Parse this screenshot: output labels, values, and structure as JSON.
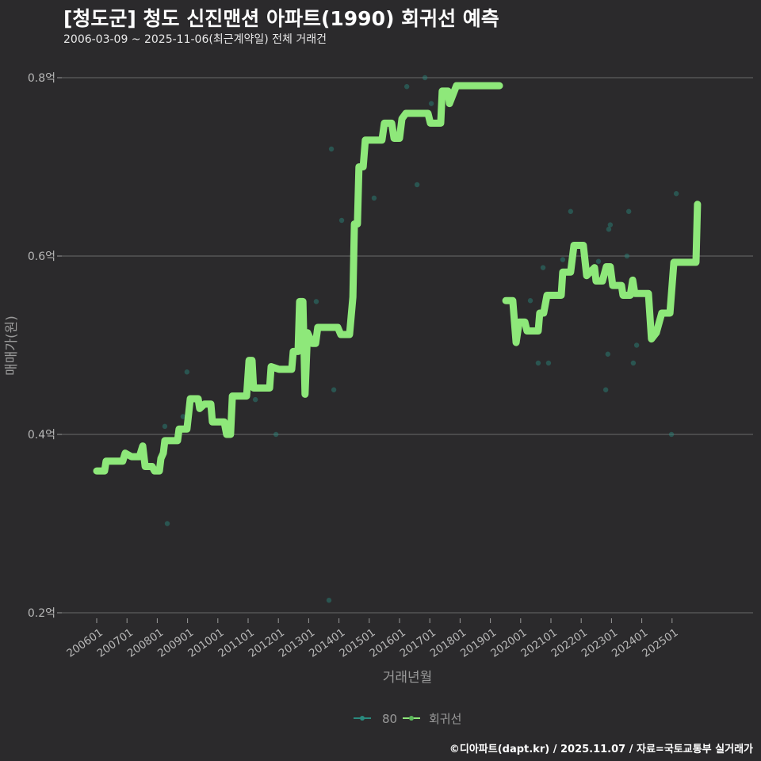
{
  "chart_data": {
    "type": "line",
    "title": "[청도군] 청도 신진맨션 아파트(1990) 회귀선 예측",
    "subtitle": "2006-03-09 ~ 2025-11-06(최근계약일) 전체 거래건",
    "xlabel": "거래년월",
    "ylabel": "매매가(원)",
    "ylim": [
      0.2,
      0.8
    ],
    "y_ticks": [
      {
        "value": 0.8,
        "label": "0.8억"
      },
      {
        "value": 0.6,
        "label": "0.6억"
      },
      {
        "value": 0.4,
        "label": "0.4억"
      },
      {
        "value": 0.2,
        "label": "0.2억"
      }
    ],
    "x_ticks": [
      "200601",
      "200701",
      "200801",
      "200901",
      "201001",
      "201101",
      "201201",
      "201301",
      "201401",
      "201501",
      "201601",
      "201701",
      "201801",
      "201901",
      "202001",
      "202101",
      "202201",
      "202301",
      "202401",
      "202501"
    ],
    "grid": true,
    "legend_position": "bottom",
    "legend": [
      {
        "name": "80",
        "color": "#2a8a7e"
      },
      {
        "name": "회귀선",
        "color": "#8ee87a"
      }
    ],
    "series": [
      {
        "name": "80",
        "kind": "scatter",
        "color": "#2a8a7e",
        "points": [
          [
            2008.25,
            0.409
          ],
          [
            2008.33,
            0.3
          ],
          [
            2008.85,
            0.42
          ],
          [
            2008.98,
            0.47
          ],
          [
            2011.24,
            0.439
          ],
          [
            2011.92,
            0.4
          ],
          [
            2013.25,
            0.549
          ],
          [
            2013.67,
            0.214
          ],
          [
            2013.75,
            0.72
          ],
          [
            2013.83,
            0.45
          ],
          [
            2014.09,
            0.64
          ],
          [
            2015.16,
            0.665
          ],
          [
            2016.24,
            0.79
          ],
          [
            2016.58,
            0.68
          ],
          [
            2016.84,
            0.8
          ],
          [
            2017.05,
            0.771
          ],
          [
            2020.32,
            0.55
          ],
          [
            2020.58,
            0.48
          ],
          [
            2020.74,
            0.587
          ],
          [
            2020.92,
            0.48
          ],
          [
            2021.39,
            0.596
          ],
          [
            2021.65,
            0.65
          ],
          [
            2022.57,
            0.594
          ],
          [
            2022.81,
            0.45
          ],
          [
            2022.88,
            0.49
          ],
          [
            2022.91,
            0.63
          ],
          [
            2022.96,
            0.635
          ],
          [
            2023.51,
            0.6
          ],
          [
            2023.57,
            0.65
          ],
          [
            2023.72,
            0.48
          ],
          [
            2023.83,
            0.5
          ],
          [
            2024.98,
            0.4
          ],
          [
            2025.14,
            0.67
          ]
        ]
      },
      {
        "name": "회귀선",
        "kind": "line",
        "color": "#8ee87a",
        "segments": [
          [
            [
              2006.0,
              0.359
            ],
            [
              2006.26,
              0.359
            ],
            [
              2006.31,
              0.37
            ],
            [
              2006.86,
              0.37
            ],
            [
              2006.94,
              0.379
            ],
            [
              2007.15,
              0.375
            ],
            [
              2007.41,
              0.375
            ],
            [
              2007.52,
              0.387
            ],
            [
              2007.6,
              0.364
            ],
            [
              2007.83,
              0.364
            ],
            [
              2007.91,
              0.359
            ],
            [
              2008.07,
              0.359
            ],
            [
              2008.12,
              0.373
            ],
            [
              2008.2,
              0.379
            ],
            [
              2008.25,
              0.393
            ],
            [
              2008.67,
              0.393
            ],
            [
              2008.72,
              0.406
            ],
            [
              2008.98,
              0.406
            ],
            [
              2009.09,
              0.44
            ],
            [
              2009.35,
              0.44
            ],
            [
              2009.4,
              0.429
            ],
            [
              2009.56,
              0.434
            ],
            [
              2009.77,
              0.434
            ],
            [
              2009.82,
              0.414
            ],
            [
              2010.21,
              0.414
            ],
            [
              2010.29,
              0.4
            ],
            [
              2010.42,
              0.4
            ],
            [
              2010.48,
              0.443
            ],
            [
              2010.95,
              0.443
            ],
            [
              2011.03,
              0.483
            ],
            [
              2011.13,
              0.483
            ],
            [
              2011.18,
              0.452
            ],
            [
              2011.71,
              0.452
            ],
            [
              2011.76,
              0.476
            ],
            [
              2012.02,
              0.473
            ],
            [
              2012.44,
              0.473
            ],
            [
              2012.49,
              0.493
            ],
            [
              2012.65,
              0.493
            ],
            [
              2012.7,
              0.549
            ],
            [
              2012.81,
              0.549
            ],
            [
              2012.88,
              0.445
            ],
            [
              2012.96,
              0.514
            ],
            [
              2013.12,
              0.502
            ],
            [
              2013.23,
              0.502
            ],
            [
              2013.3,
              0.52
            ],
            [
              2013.96,
              0.52
            ],
            [
              2014.06,
              0.512
            ],
            [
              2014.35,
              0.512
            ],
            [
              2014.46,
              0.554
            ],
            [
              2014.51,
              0.636
            ],
            [
              2014.61,
              0.636
            ],
            [
              2014.66,
              0.7
            ],
            [
              2014.8,
              0.7
            ],
            [
              2014.87,
              0.73
            ],
            [
              2015.42,
              0.73
            ],
            [
              2015.5,
              0.749
            ],
            [
              2015.74,
              0.749
            ],
            [
              2015.82,
              0.732
            ],
            [
              2016.0,
              0.732
            ],
            [
              2016.08,
              0.754
            ],
            [
              2016.21,
              0.76
            ],
            [
              2016.94,
              0.76
            ],
            [
              2017.02,
              0.749
            ],
            [
              2017.36,
              0.749
            ],
            [
              2017.41,
              0.785
            ],
            [
              2017.6,
              0.785
            ],
            [
              2017.65,
              0.771
            ],
            [
              2017.81,
              0.785
            ],
            [
              2017.88,
              0.791
            ],
            [
              2019.3,
              0.791
            ]
          ],
          [
            [
              2019.51,
              0.55
            ],
            [
              2019.74,
              0.55
            ],
            [
              2019.85,
              0.503
            ],
            [
              2019.95,
              0.526
            ],
            [
              2020.14,
              0.526
            ],
            [
              2020.21,
              0.516
            ],
            [
              2020.58,
              0.516
            ],
            [
              2020.63,
              0.536
            ],
            [
              2020.76,
              0.536
            ],
            [
              2020.87,
              0.556
            ],
            [
              2021.34,
              0.556
            ],
            [
              2021.39,
              0.582
            ],
            [
              2021.65,
              0.582
            ],
            [
              2021.76,
              0.612
            ],
            [
              2022.07,
              0.612
            ],
            [
              2022.18,
              0.578
            ],
            [
              2022.44,
              0.587
            ],
            [
              2022.49,
              0.572
            ],
            [
              2022.7,
              0.572
            ],
            [
              2022.83,
              0.588
            ],
            [
              2022.96,
              0.588
            ],
            [
              2023.04,
              0.567
            ],
            [
              2023.33,
              0.567
            ],
            [
              2023.38,
              0.556
            ],
            [
              2023.62,
              0.556
            ],
            [
              2023.7,
              0.573
            ],
            [
              2023.77,
              0.558
            ],
            [
              2024.22,
              0.558
            ],
            [
              2024.32,
              0.507
            ],
            [
              2024.48,
              0.514
            ],
            [
              2024.66,
              0.536
            ],
            [
              2024.93,
              0.536
            ],
            [
              2025.06,
              0.593
            ],
            [
              2025.79,
              0.593
            ],
            [
              2025.84,
              0.658
            ]
          ]
        ]
      }
    ],
    "footer": "©디아파트(dapt.kr) / 2025.11.07 / 자료=국토교통부 실거래가"
  }
}
